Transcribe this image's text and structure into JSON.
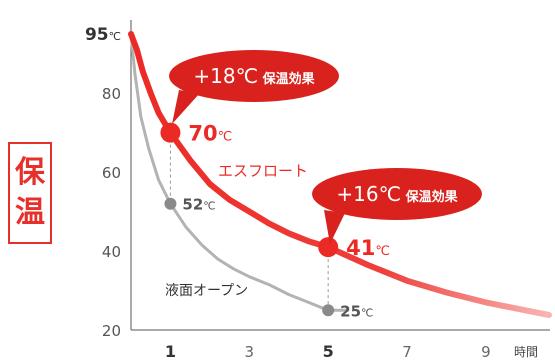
{
  "side_label": {
    "line1": "保",
    "line2": "温"
  },
  "chart_data": {
    "type": "line",
    "title": "",
    "xlabel": "時間",
    "ylabel": "",
    "xlim": [
      0,
      10.6
    ],
    "ylim": [
      20,
      95
    ],
    "x_ticks": [
      {
        "value": 1,
        "label": "1",
        "bold": true
      },
      {
        "value": 3,
        "label": "3",
        "bold": false
      },
      {
        "value": 5,
        "label": "5",
        "bold": true
      },
      {
        "value": 7,
        "label": "7",
        "bold": false
      },
      {
        "value": 9,
        "label": "9",
        "bold": false
      }
    ],
    "y_ticks": [
      {
        "value": 95,
        "label": "95",
        "bold": true,
        "unit": "℃"
      },
      {
        "value": 80,
        "label": "80",
        "bold": false,
        "unit": ""
      },
      {
        "value": 60,
        "label": "60",
        "bold": false,
        "unit": ""
      },
      {
        "value": 40,
        "label": "40",
        "bold": false,
        "unit": ""
      },
      {
        "value": 20,
        "label": "20",
        "bold": false,
        "unit": ""
      }
    ],
    "series": [
      {
        "name": "エスフロート",
        "color": "#ec2a25",
        "x": [
          0,
          0.15,
          0.3,
          0.5,
          0.7,
          1,
          1.5,
          2,
          2.5,
          3,
          3.5,
          4,
          4.5,
          5,
          6,
          7,
          8,
          9,
          10,
          10.6
        ],
        "y": [
          95,
          91,
          85.5,
          80,
          75,
          70,
          63,
          57,
          53,
          50,
          47,
          44.5,
          42.5,
          41,
          36.5,
          32.5,
          29.5,
          27,
          25,
          23.8
        ]
      },
      {
        "name": "液面オープン",
        "color": "#8a8a8a",
        "x": [
          0,
          0.1,
          0.25,
          0.45,
          0.7,
          1,
          1.4,
          1.8,
          2.2,
          2.6,
          3,
          3.5,
          4,
          4.5,
          5,
          5.5
        ],
        "y": [
          95,
          85,
          74,
          66,
          58,
          52,
          46,
          41.5,
          38,
          35.5,
          33.5,
          31.5,
          29,
          27,
          25,
          25
        ]
      }
    ],
    "annotations": [
      {
        "x": 1,
        "y": 70,
        "value": "70",
        "unit": "℃",
        "series": "エスフロート"
      },
      {
        "x": 5,
        "y": 41,
        "value": "41",
        "unit": "℃",
        "series": "エスフロート"
      },
      {
        "x": 1,
        "y": 52,
        "value": "52",
        "unit": "℃",
        "series": "液面オープン"
      },
      {
        "x": 5,
        "y": 25,
        "value": "25",
        "unit": "℃",
        "series": "液面オープン"
      }
    ],
    "callouts": [
      {
        "text": "+18℃ 保温効果",
        "diff": "+18℃",
        "label": "保温効果",
        "x": 1
      },
      {
        "text": "+16℃ 保温効果",
        "diff": "+16℃",
        "label": "保温効果",
        "x": 5
      }
    ],
    "grid": false,
    "colors": {
      "accent": "#ec2a25",
      "callout": "#d9221d",
      "gray": "#8a8a8a",
      "axis": "#555555"
    }
  }
}
